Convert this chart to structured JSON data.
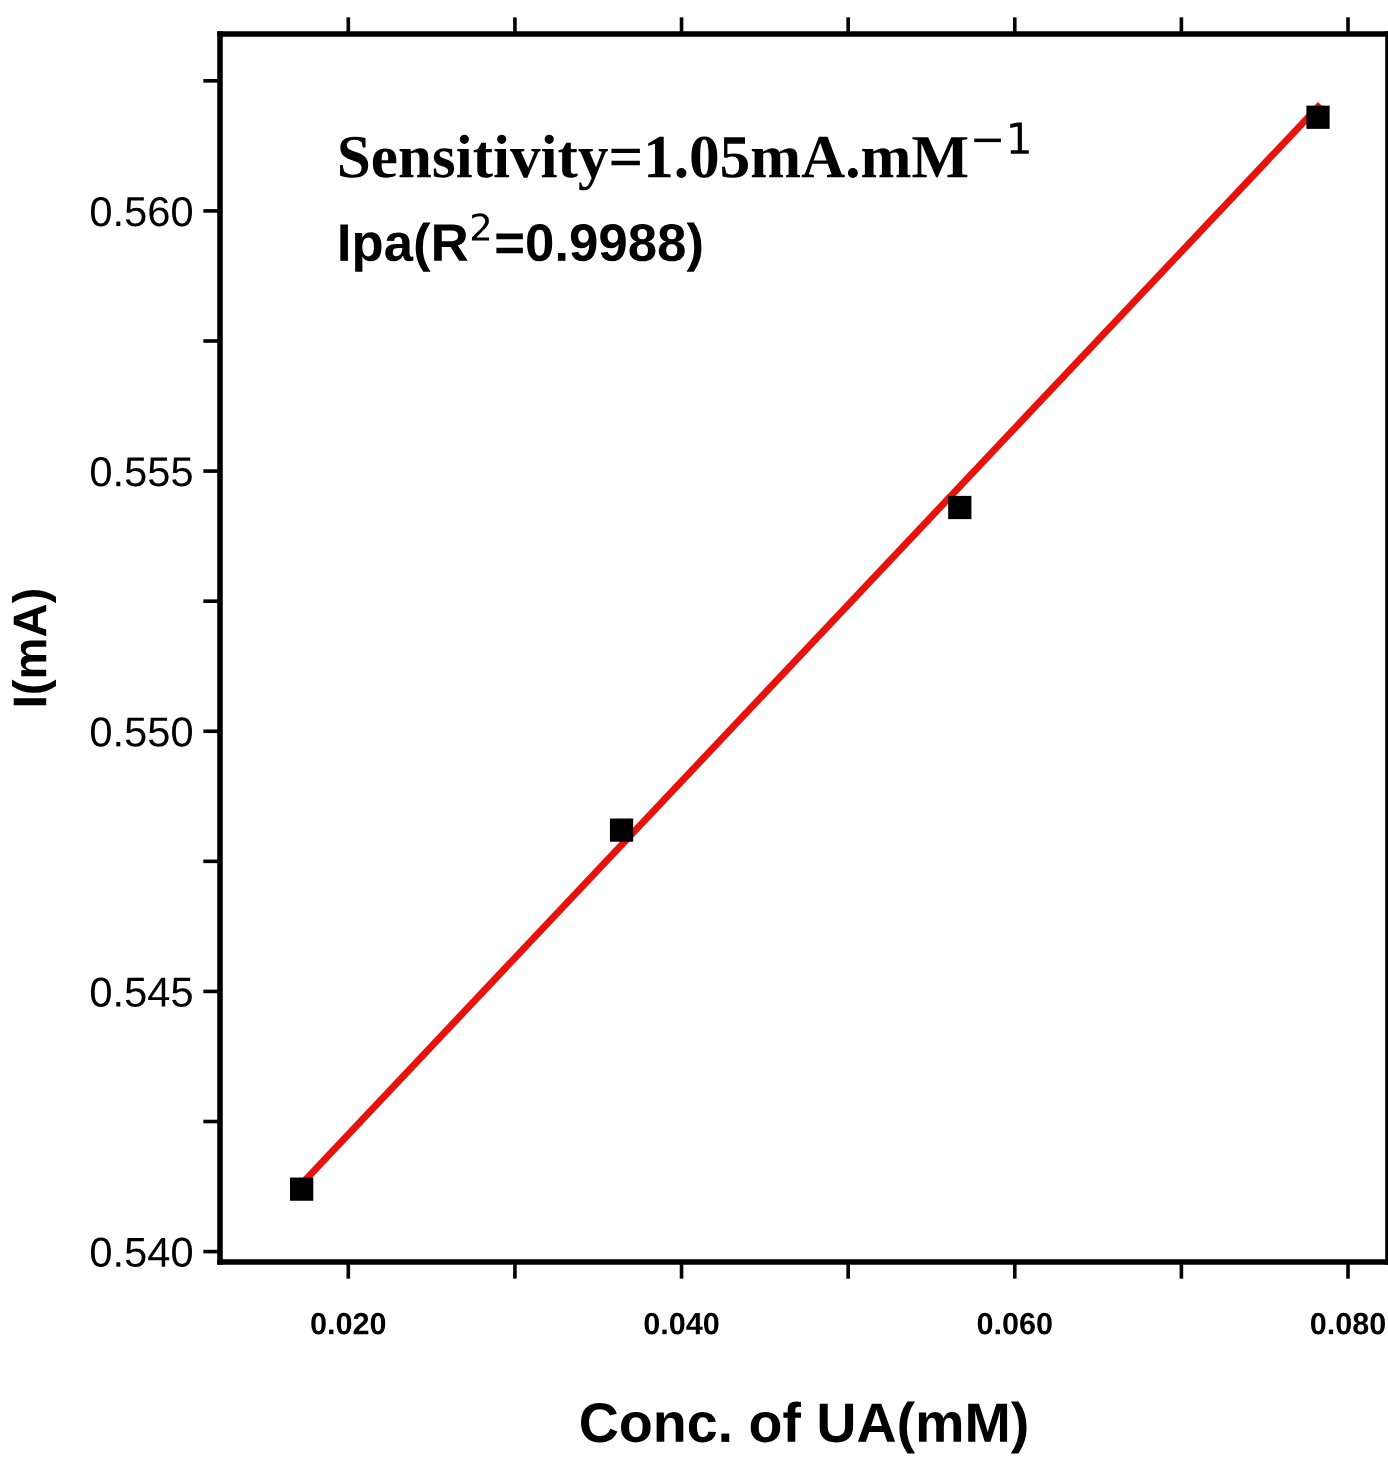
{
  "chart_data": {
    "type": "scatter",
    "xlabel": "Conc. of UA(mM)",
    "ylabel": "I(mA)",
    "annotations": [
      "Sensitivity=1.05mA.mM$^{−1}$",
      "Ipa(R$^{2}$=0.9988)"
    ],
    "series": [
      {
        "color": "#000000",
        "marker": "square",
        "x": [
          0.0172,
          0.0364,
          0.0567,
          0.0782
        ],
        "values": [
          0.5412,
          0.5481,
          0.5543,
          0.5618
        ]
      },
      {
        "type": "line",
        "color": "#e8120c",
        "marker": "none",
        "line_style": "solid",
        "x": [
          0.0172,
          0.0782
        ],
        "values": [
          0.5413,
          0.562
        ]
      }
    ],
    "xlim": [
      0.0123,
      0.0824
    ],
    "ylim": [
      0.5398,
      0.5634
    ],
    "xticks": [
      {
        "value": 0.02,
        "label": "0.020"
      },
      {
        "value": 0.03,
        "label": null
      },
      {
        "value": 0.04,
        "label": "0.040"
      },
      {
        "value": 0.05,
        "label": null
      },
      {
        "value": 0.06,
        "label": "0.060"
      },
      {
        "value": 0.07,
        "label": null
      },
      {
        "value": 0.08,
        "label": "0.080"
      }
    ],
    "yticks": [
      {
        "value": 0.54,
        "label": "0.540"
      },
      {
        "value": 0.5425,
        "label": null
      },
      {
        "value": 0.545,
        "label": "0.545"
      },
      {
        "value": 0.5475,
        "label": null
      },
      {
        "value": 0.55,
        "label": "0.550"
      },
      {
        "value": 0.5525,
        "label": null
      },
      {
        "value": 0.555,
        "label": "0.555"
      },
      {
        "value": 0.5575,
        "label": null
      },
      {
        "value": 0.56,
        "label": "0.560"
      },
      {
        "value": 0.5625,
        "label": null
      }
    ],
    "grid": false,
    "legend": false
  }
}
